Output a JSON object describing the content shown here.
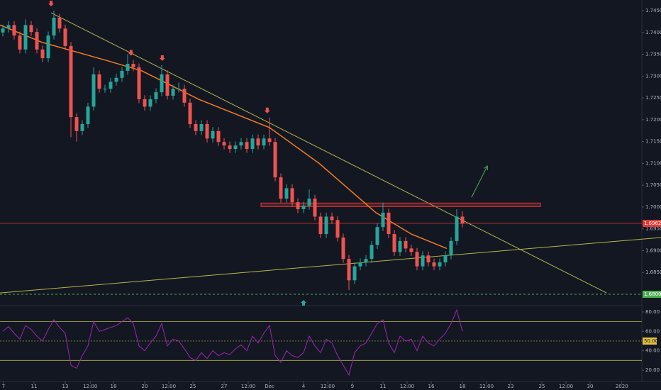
{
  "chart_data": {
    "type": "candlestick",
    "xlim": [
      0,
      113.125
    ],
    "xticks": [
      {
        "value": 0.6,
        "label": "7"
      },
      {
        "value": 6,
        "label": "11"
      },
      {
        "value": 11.5,
        "label": "13"
      },
      {
        "value": 15.9,
        "label": "12:00"
      },
      {
        "value": 20,
        "label": "18"
      },
      {
        "value": 25.5,
        "label": "20"
      },
      {
        "value": 29.75,
        "label": "12:00"
      },
      {
        "value": 34,
        "label": "25"
      },
      {
        "value": 39.5,
        "label": "27"
      },
      {
        "value": 43.75,
        "label": "12:00"
      },
      {
        "value": 47.5,
        "label": "Dec"
      },
      {
        "value": 53.5,
        "label": "4"
      },
      {
        "value": 57.75,
        "label": "12:00"
      },
      {
        "value": 62.1,
        "label": "9"
      },
      {
        "value": 67.5,
        "label": "11"
      },
      {
        "value": 71.75,
        "label": "12:00"
      },
      {
        "value": 76,
        "label": "16"
      },
      {
        "value": 81.5,
        "label": "18"
      },
      {
        "value": 85.75,
        "label": "12:00"
      },
      {
        "value": 90,
        "label": "23"
      },
      {
        "value": 95.5,
        "label": "25"
      },
      {
        "value": 99.75,
        "label": "12:00"
      },
      {
        "value": 104,
        "label": "30"
      },
      {
        "value": 109.6,
        "label": "2020"
      }
    ],
    "ylim": [
      1.67756,
      1.74744
    ],
    "yticks": [
      {
        "value": 1.745,
        "label": "1.74500"
      },
      {
        "value": 1.74,
        "label": "1.74000"
      },
      {
        "value": 1.735,
        "label": "1.73500"
      },
      {
        "value": 1.73,
        "label": "1.73000"
      },
      {
        "value": 1.725,
        "label": "1.72500"
      },
      {
        "value": 1.72,
        "label": "1.72000"
      },
      {
        "value": 1.715,
        "label": "1.71500"
      },
      {
        "value": 1.71,
        "label": "1.71000"
      },
      {
        "value": 1.705,
        "label": "1.70500"
      },
      {
        "value": 1.7,
        "label": "1.70000"
      },
      {
        "value": 1.695,
        "label": "1.69500"
      },
      {
        "value": 1.69,
        "label": "1.69000"
      },
      {
        "value": 1.685,
        "label": "1.68500"
      }
    ],
    "up_color": "#26a69a",
    "down_color": "#ef5350",
    "candles": {
      "open": [
        1.74,
        1.7409,
        1.7417,
        1.7393,
        1.7361,
        1.7417,
        1.7401,
        1.7361,
        1.7341,
        1.7393,
        1.7434,
        1.7409,
        1.7369,
        1.7206,
        1.7174,
        1.719,
        1.723,
        1.7304,
        1.7271,
        1.7271,
        1.7287,
        1.7296,
        1.7312,
        1.7328,
        1.732,
        1.7247,
        1.723,
        1.7247,
        1.7263,
        1.7304,
        1.7255,
        1.7271,
        1.7271,
        1.7239,
        1.719,
        1.7174,
        1.719,
        1.7157,
        1.7174,
        1.7149,
        1.7141,
        1.7133,
        1.7141,
        1.7149,
        1.7133,
        1.7157,
        1.7141,
        1.7157,
        1.7149,
        1.7068,
        1.7019,
        1.7043,
        1.7011,
        1.6995,
        1.7003,
        1.7019,
        1.6978,
        1.6938,
        1.6978,
        1.697,
        1.693,
        1.6881,
        1.6832,
        1.6864,
        1.6873,
        1.6881,
        1.6913,
        1.6954,
        1.6987,
        1.6938,
        1.6897,
        1.6922,
        1.6905,
        1.6897,
        1.6864,
        1.6889,
        1.6873,
        1.6864,
        1.6873,
        1.6889,
        1.6922,
        1.6978
      ],
      "high": [
        1.7418,
        1.7426,
        1.7426,
        1.7402,
        1.743,
        1.7426,
        1.741,
        1.737,
        1.7402,
        1.745,
        1.7443,
        1.7418,
        1.7378,
        1.7215,
        1.7199,
        1.7239,
        1.732,
        1.7313,
        1.728,
        1.7296,
        1.7305,
        1.7321,
        1.735,
        1.7337,
        1.7329,
        1.7256,
        1.7256,
        1.7272,
        1.7325,
        1.7313,
        1.728,
        1.7285,
        1.728,
        1.7248,
        1.7199,
        1.7199,
        1.7199,
        1.7183,
        1.7183,
        1.7158,
        1.715,
        1.715,
        1.7158,
        1.7158,
        1.7166,
        1.7166,
        1.7166,
        1.7205,
        1.7158,
        1.7077,
        1.7052,
        1.7052,
        1.702,
        1.7012,
        1.704,
        1.7028,
        1.6987,
        1.6987,
        1.6987,
        1.6979,
        1.6939,
        1.689,
        1.6873,
        1.6882,
        1.689,
        1.6922,
        1.6963,
        1.701,
        1.6996,
        1.6947,
        1.6931,
        1.6931,
        1.6914,
        1.6906,
        1.6898,
        1.6898,
        1.6882,
        1.6882,
        1.6898,
        1.6931,
        1.6995,
        1.699
      ],
      "low": [
        1.7391,
        1.74,
        1.7384,
        1.7352,
        1.7352,
        1.7392,
        1.7352,
        1.7332,
        1.7332,
        1.7384,
        1.74,
        1.736,
        1.716,
        1.715,
        1.7165,
        1.7181,
        1.7221,
        1.7262,
        1.7262,
        1.7262,
        1.7278,
        1.7287,
        1.7303,
        1.7311,
        1.7238,
        1.7221,
        1.7221,
        1.7238,
        1.7254,
        1.7246,
        1.7246,
        1.7262,
        1.723,
        1.7181,
        1.7165,
        1.7165,
        1.7148,
        1.7148,
        1.714,
        1.7132,
        1.7124,
        1.7124,
        1.7132,
        1.7124,
        1.7124,
        1.7132,
        1.7132,
        1.714,
        1.7059,
        1.701,
        1.701,
        1.7002,
        1.6986,
        1.6986,
        1.6994,
        1.6969,
        1.6929,
        1.6929,
        1.6961,
        1.6921,
        1.6872,
        1.681,
        1.6823,
        1.6855,
        1.6864,
        1.6872,
        1.6904,
        1.6945,
        1.6929,
        1.6888,
        1.6888,
        1.6896,
        1.6888,
        1.6855,
        1.6855,
        1.6864,
        1.6855,
        1.6855,
        1.6864,
        1.688,
        1.6913,
        1.6953
      ],
      "close": [
        1.7409,
        1.7417,
        1.7393,
        1.7361,
        1.7417,
        1.7401,
        1.7361,
        1.7341,
        1.7393,
        1.7434,
        1.7409,
        1.7369,
        1.7206,
        1.7174,
        1.719,
        1.723,
        1.7304,
        1.7271,
        1.7271,
        1.7287,
        1.7296,
        1.7312,
        1.7328,
        1.732,
        1.7247,
        1.723,
        1.7247,
        1.7263,
        1.7304,
        1.7255,
        1.7271,
        1.7271,
        1.7239,
        1.719,
        1.7174,
        1.719,
        1.7157,
        1.7174,
        1.7149,
        1.7141,
        1.7133,
        1.7141,
        1.7149,
        1.7133,
        1.7157,
        1.7141,
        1.7157,
        1.7149,
        1.7068,
        1.7019,
        1.7043,
        1.7011,
        1.6995,
        1.7003,
        1.7019,
        1.6978,
        1.6938,
        1.6978,
        1.697,
        1.693,
        1.6881,
        1.6832,
        1.6864,
        1.6873,
        1.6881,
        1.6913,
        1.6954,
        1.6987,
        1.6938,
        1.6897,
        1.6922,
        1.6905,
        1.6897,
        1.6864,
        1.6889,
        1.6873,
        1.6864,
        1.6873,
        1.6889,
        1.6922,
        1.6978,
        1.6962
      ]
    },
    "moving_average": {
      "color": "#f57c1f",
      "x": [
        0,
        7.5,
        18.75,
        25,
        35,
        47.5,
        56.25,
        66.25,
        72.5,
        78.75
      ],
      "values": [
        1.7417,
        1.7377,
        1.7336,
        1.7312,
        1.7247,
        1.7182,
        1.71,
        1.6987,
        1.6938,
        1.6905
      ]
    },
    "trendlines": [
      {
        "color": "#b5b54a",
        "x": [
          9,
          106.9
        ],
        "values": [
          1.7445,
          1.6803
        ]
      },
      {
        "color": "#b5b54a",
        "x": [
          0,
          116.5
        ],
        "values": [
          1.6803,
          1.693
        ]
      }
    ],
    "resistance_zone": {
      "value": 1.7005,
      "x": [
        46,
        95.25
      ],
      "color": "#e53935"
    },
    "price_line": {
      "value": 1.69625,
      "label": "1.69625",
      "color": "#e53935"
    },
    "support_line": {
      "value": 1.68,
      "label": "1.68000",
      "color": "#4caf50"
    },
    "down_arrows": {
      "x": [
        9,
        23.1,
        28.6,
        47.1
      ],
      "color": "#ef5350"
    },
    "up_arrow": {
      "x": 53.5,
      "color": "#26a69a"
    },
    "target_arrow": {
      "x": [
        83.1,
        85.9
      ],
      "values": [
        1.7022,
        1.7094
      ],
      "color": "#4caf50"
    },
    "rsi": {
      "color": "#9c27b0",
      "values": [
        60,
        65,
        58,
        52,
        66,
        62,
        55,
        50,
        62,
        72,
        64,
        58,
        25,
        22,
        35,
        45,
        70,
        60,
        62,
        64,
        66,
        70,
        74,
        68,
        45,
        40,
        48,
        55,
        68,
        45,
        52,
        50,
        42,
        33,
        30,
        38,
        32,
        40,
        35,
        38,
        36,
        42,
        46,
        40,
        55,
        48,
        58,
        66,
        35,
        28,
        40,
        35,
        33,
        38,
        55,
        45,
        38,
        52,
        48,
        35,
        25,
        15,
        38,
        45,
        48,
        58,
        68,
        72,
        48,
        38,
        55,
        50,
        52,
        40,
        55,
        48,
        45,
        52,
        58,
        68,
        82,
        60
      ],
      "ylim": [
        10.5,
        85.8
      ],
      "yticks": [
        {
          "value": 80,
          "label": "80.00"
        },
        {
          "value": 60,
          "label": "60.00"
        },
        {
          "value": 40,
          "label": "40.00"
        },
        {
          "value": 20,
          "label": "20.00"
        }
      ],
      "levels": [
        70,
        30
      ],
      "mid": {
        "value": 50,
        "label": "50.00"
      },
      "level_color": "#b5b54a"
    }
  }
}
